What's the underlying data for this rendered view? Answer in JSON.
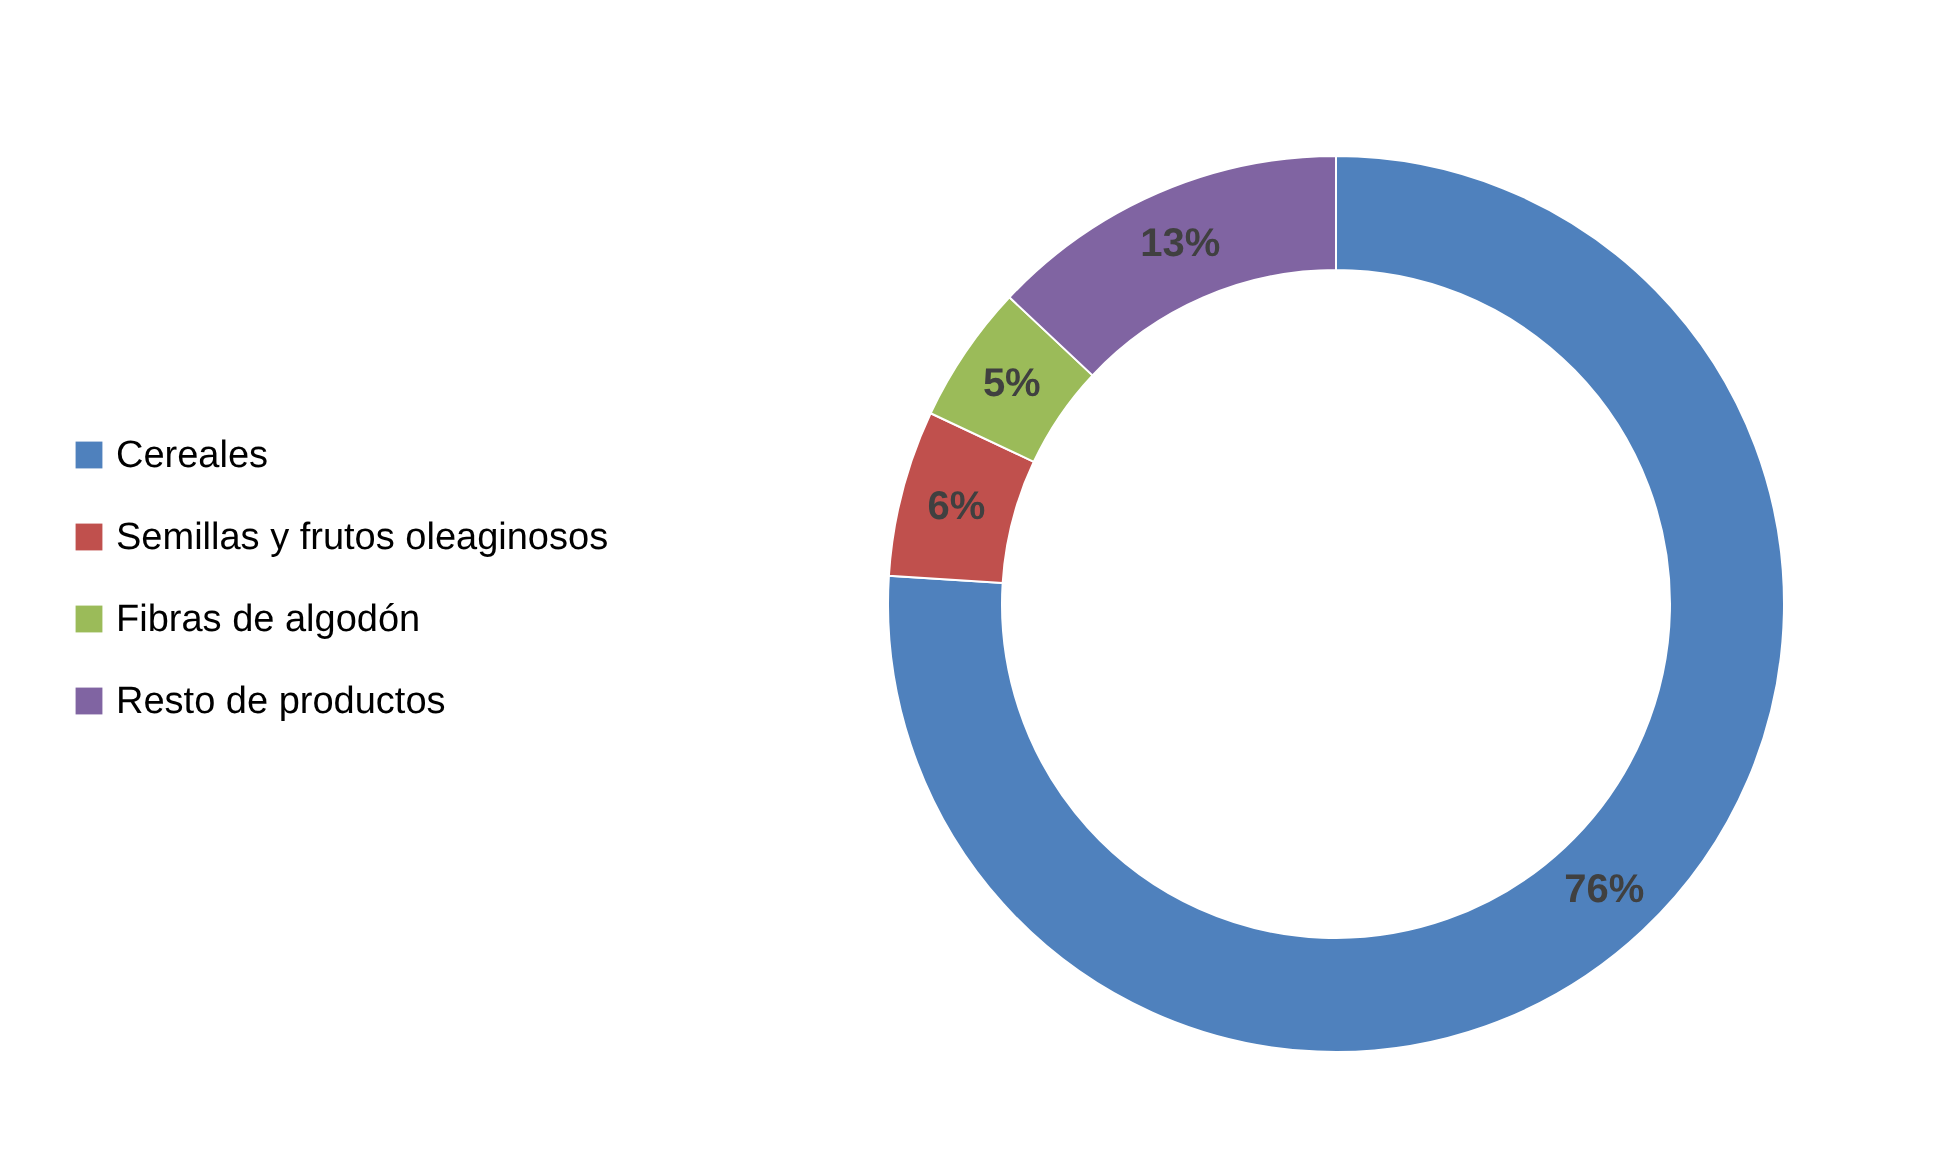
{
  "chart_data": {
    "type": "donut",
    "categories": [
      "Cereales",
      "Semillas y frutos oleaginosos",
      "Fibras de algodón",
      "Resto de productos"
    ],
    "values": [
      76,
      6,
      5,
      13
    ],
    "colors": [
      "#4f81bd",
      "#c0504d",
      "#9bbb59",
      "#8064a2"
    ],
    "value_labels": [
      "76%",
      "6%",
      "5%",
      "13%"
    ],
    "legend": "left"
  }
}
